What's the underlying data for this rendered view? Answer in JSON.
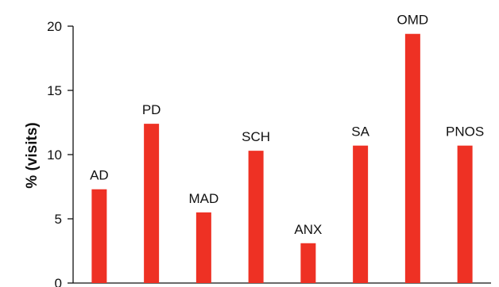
{
  "chart_data": {
    "type": "bar",
    "title": "",
    "xlabel": "",
    "ylabel": "% (visits)",
    "ylim": [
      0,
      20
    ],
    "yticks": [
      "0",
      "5",
      "10",
      "15",
      "20"
    ],
    "categories": [
      "AD",
      "PD",
      "MAD",
      "SCH",
      "ANX",
      "SA",
      "OMD",
      "PNOS"
    ],
    "values": [
      7.3,
      12.4,
      5.5,
      10.3,
      3.1,
      10.7,
      19.4,
      10.7
    ],
    "bar_color": "#ee3124",
    "grid": false,
    "legend": "none"
  }
}
